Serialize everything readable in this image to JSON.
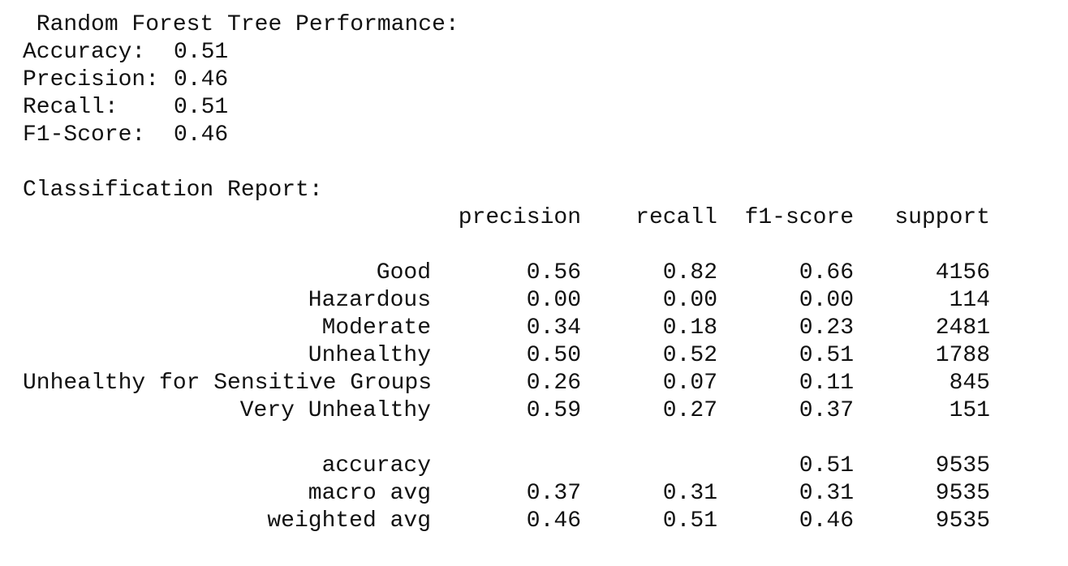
{
  "header": {
    "title": " Random Forest Tree Performance:"
  },
  "metrics": [
    {
      "label": "Accuracy:",
      "value": "0.51"
    },
    {
      "label": "Precision:",
      "value": "0.46"
    },
    {
      "label": "Recall:",
      "value": "0.51"
    },
    {
      "label": "F1-Score:",
      "value": "0.46"
    }
  ],
  "report": {
    "title": "Classification Report:",
    "columns": {
      "precision": "precision",
      "recall": "recall",
      "f1": "f1-score",
      "support": "support"
    },
    "classes": [
      {
        "label": "Good",
        "precision": "0.56",
        "recall": "0.82",
        "f1": "0.66",
        "support": "4156"
      },
      {
        "label": "Hazardous",
        "precision": "0.00",
        "recall": "0.00",
        "f1": "0.00",
        "support": "114"
      },
      {
        "label": "Moderate",
        "precision": "0.34",
        "recall": "0.18",
        "f1": "0.23",
        "support": "2481"
      },
      {
        "label": "Unhealthy",
        "precision": "0.50",
        "recall": "0.52",
        "f1": "0.51",
        "support": "1788"
      },
      {
        "label": "Unhealthy for Sensitive Groups",
        "precision": "0.26",
        "recall": "0.07",
        "f1": "0.11",
        "support": "845"
      },
      {
        "label": "Very Unhealthy",
        "precision": "0.59",
        "recall": "0.27",
        "f1": "0.37",
        "support": "151"
      }
    ],
    "summary": [
      {
        "label": "accuracy",
        "precision": "",
        "recall": "",
        "f1": "0.51",
        "support": "9535"
      },
      {
        "label": "macro avg",
        "precision": "0.37",
        "recall": "0.31",
        "f1": "0.31",
        "support": "9535"
      },
      {
        "label": "weighted avg",
        "precision": "0.46",
        "recall": "0.51",
        "f1": "0.46",
        "support": "9535"
      }
    ]
  }
}
